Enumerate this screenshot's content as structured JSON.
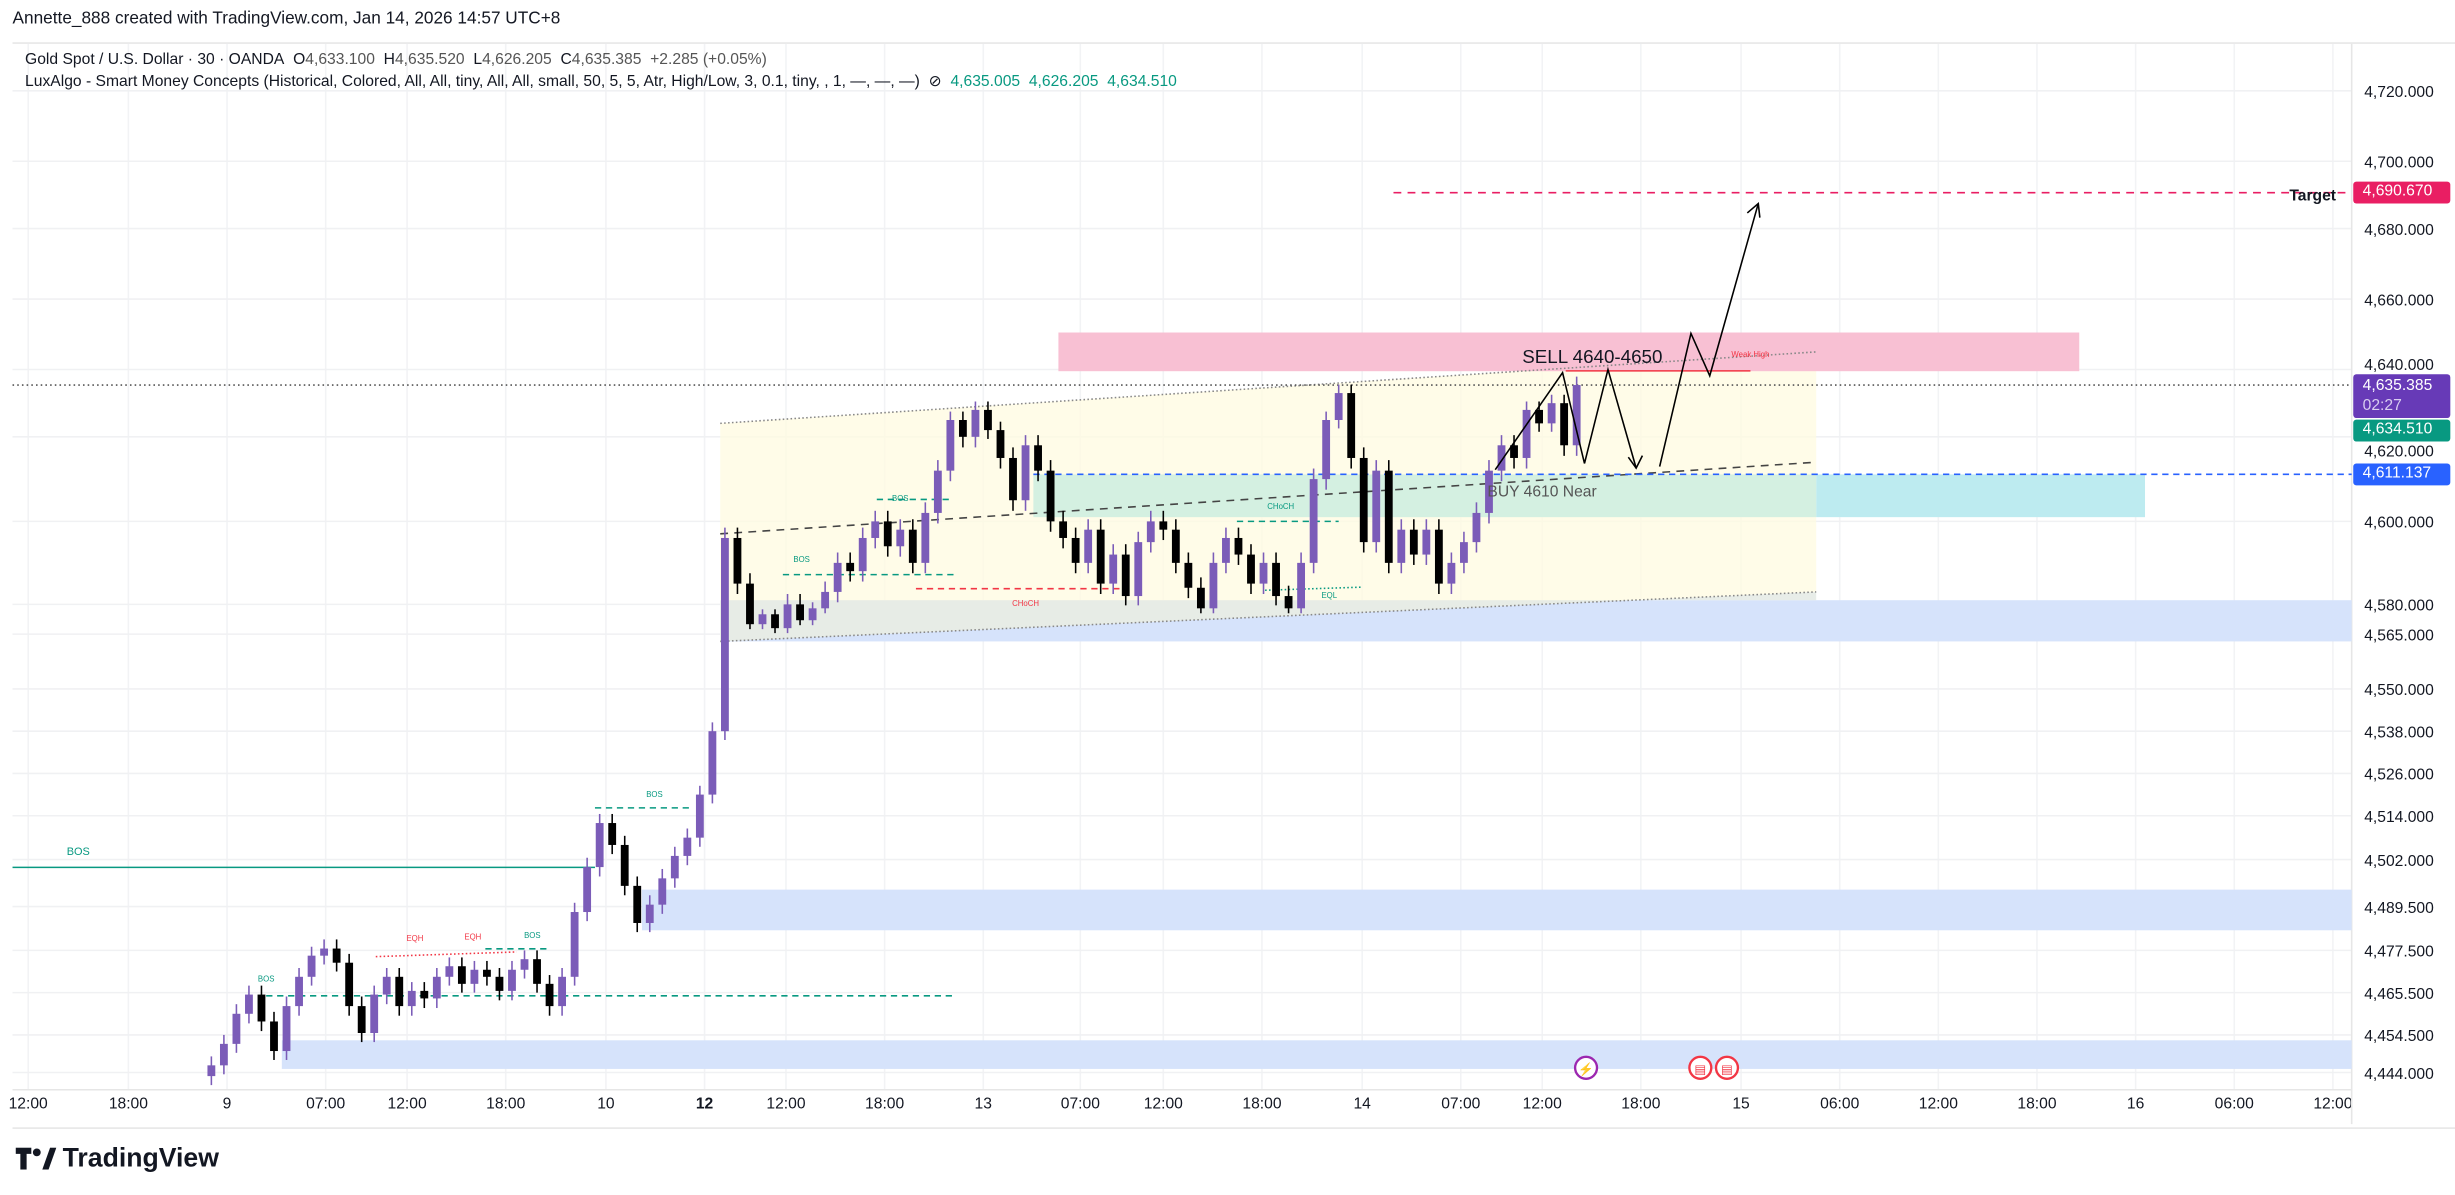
{
  "credit": "Annette_888 created with TradingView.com, Jan 14, 2026 14:57 UTC+8",
  "legend": {
    "symbol": "Gold Spot / U.S. Dollar · 30 · OANDA",
    "open_label": "O",
    "open": "4,633.100",
    "high_label": "H",
    "high": "4,635.520",
    "low_label": "L",
    "low": "4,626.205",
    "close_label": "C",
    "close": "4,635.385",
    "change": "+2.285 (+0.05%)",
    "indicator": "LuxAlgo - Smart Money Concepts (Historical, Colored, All, All, tiny, All, All, small, 50, 5, 5, Atr, High/Low, 3, 0.1, tiny, , 1, —, —, —)",
    "indicator_icon": "hidden-eye-slash-icon",
    "ind_values": [
      "4,635.005",
      "4,626.205",
      "4,634.510"
    ]
  },
  "price_axis": {
    "ticks": [
      4720,
      4700,
      4680,
      4660,
      4640,
      4620,
      4600,
      4580,
      4565,
      4550,
      4538,
      4526,
      4514,
      4502,
      4489.5,
      4477.5,
      4465.5,
      4454.5,
      4444
    ],
    "labels": [
      "4,720.000",
      "4,700.000",
      "4,680.000",
      "4,660.000",
      "4,640.000",
      "4,620.000",
      "4,600.000",
      "4,580.000",
      "4,565.000",
      "4,550.000",
      "4,538.000",
      "4,526.000",
      "4,514.000",
      "4,502.000",
      "4,489.500",
      "4,477.500",
      "4,465.500",
      "4,454.500",
      "4,444.000"
    ]
  },
  "time_axis": [
    "12:00",
    "18:00",
    "9",
    "07:00",
    "12:00",
    "18:00",
    "10",
    "12",
    "12:00",
    "18:00",
    "13",
    "07:00",
    "12:00",
    "18:00",
    "14",
    "07:00",
    "12:00",
    "18:00",
    "15",
    "06:00",
    "12:00",
    "18:00",
    "16",
    "06:00",
    "12:00"
  ],
  "badges": {
    "target": {
      "label": "Target",
      "price": 4690.67,
      "text": "4,690.670",
      "color": "#e91e63"
    },
    "last": {
      "price": 4635.385,
      "text": "4,635.385",
      "countdown": "02:27",
      "color": "#673ab7"
    },
    "indicator": {
      "price": 4634.51,
      "text": "4,634.510",
      "color": "#089981"
    },
    "line": {
      "price": 4611.137,
      "text": "4,611.137",
      "color": "#2962ff"
    }
  },
  "colors": {
    "up": "#7b5cb8",
    "down": "#000000",
    "bos": "#089981",
    "choch_red": "#f23645"
  },
  "annotations": {
    "sell": "SELL 4640-4650",
    "buy": "BUY 4610 Near",
    "weak_high": "Weak High",
    "bos": "BOS",
    "eqh": "EQH",
    "eql": "EQL",
    "choch": "CHoCH"
  },
  "zones": {
    "sell": [
      4650.5,
      4639.5
    ],
    "demand": [
      4611.1,
      4601
    ],
    "lower": [
      4581,
      4563
    ],
    "mid_blue": [
      4494,
      4483
    ],
    "bottom_blue": [
      4453,
      4445
    ]
  },
  "events": [
    "economic-event-icon",
    "us-flag-icon",
    "us-flag-icon"
  ],
  "chart_data": {
    "type": "candlestick",
    "closes": [
      4446,
      4452,
      4460,
      4465,
      4458,
      4450,
      4462,
      4470,
      4476,
      4478,
      4474,
      4462,
      4455,
      4465,
      4470,
      4462,
      4466,
      4464,
      4470,
      4473,
      4468,
      4472,
      4470,
      4466,
      4472,
      4475,
      4468,
      4462,
      4470,
      4488,
      4500,
      4512,
      4506,
      4495,
      4485,
      4490,
      4497,
      4503,
      4508,
      4520,
      4538,
      4596,
      4585,
      4570,
      4575,
      4568,
      4580,
      4572,
      4578,
      4583,
      4590,
      4588,
      4596,
      4600,
      4594,
      4598,
      4590,
      4602,
      4612,
      4625,
      4620,
      4628,
      4622,
      4615,
      4605,
      4618,
      4612,
      4600,
      4596,
      4590,
      4598,
      4585,
      4592,
      4582,
      4595,
      4600,
      4598,
      4590,
      4584,
      4578,
      4590,
      4596,
      4592,
      4585,
      4590,
      4582,
      4578,
      4590,
      4610,
      4625,
      4633,
      4615,
      4595,
      4612,
      4590,
      4598,
      4592,
      4598,
      4585,
      4590,
      4595,
      4602,
      4612,
      4618,
      4615,
      4628,
      4624,
      4630,
      4618,
      4635.385
    ]
  },
  "logo": "TradingView"
}
